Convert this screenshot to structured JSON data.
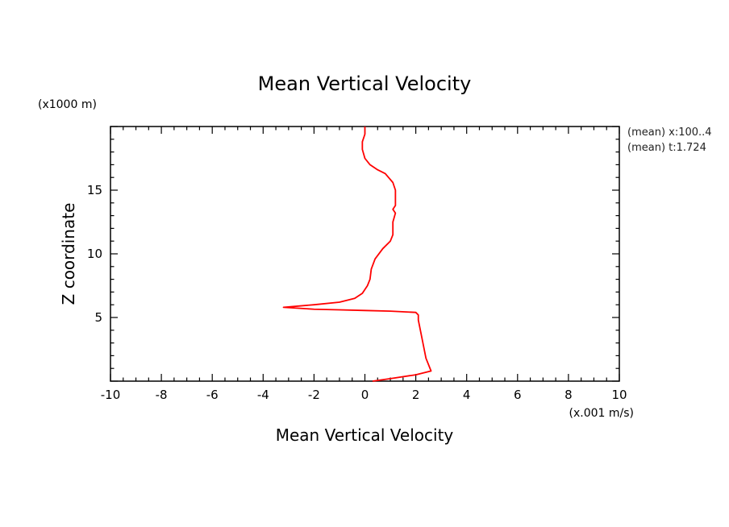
{
  "chart_data": {
    "type": "line",
    "title": "Mean Vertical Velocity",
    "xlabel": "Mean Vertical Velocity",
    "ylabel": "Z coordinate",
    "x_unit": "(x.001 m/s)",
    "y_unit": "(x1000 m)",
    "xlim": [
      -10,
      10
    ],
    "ylim": [
      0,
      20
    ],
    "x_ticks": [
      "-10",
      "-8",
      "-6",
      "-4",
      "-2",
      "0",
      "2",
      "4",
      "6",
      "8",
      "10"
    ],
    "y_ticks": [
      "5",
      "10",
      "15"
    ],
    "grid": false,
    "annotations": [
      "(mean) x:100..4",
      "(mean) t:1.724"
    ],
    "series": [
      {
        "color": "#ff0000",
        "points": [
          [
            0.3,
            0.0
          ],
          [
            1.0,
            0.2
          ],
          [
            2.0,
            0.5
          ],
          [
            2.6,
            0.8
          ],
          [
            2.4,
            1.8
          ],
          [
            2.3,
            2.8
          ],
          [
            2.2,
            3.8
          ],
          [
            2.1,
            4.8
          ],
          [
            2.1,
            5.2
          ],
          [
            2.0,
            5.4
          ],
          [
            1.0,
            5.5
          ],
          [
            0.0,
            5.55
          ],
          [
            -1.0,
            5.6
          ],
          [
            -2.0,
            5.65
          ],
          [
            -3.2,
            5.8
          ],
          [
            -2.0,
            6.0
          ],
          [
            -1.0,
            6.2
          ],
          [
            -0.4,
            6.5
          ],
          [
            -0.1,
            6.9
          ],
          [
            0.0,
            7.2
          ],
          [
            0.1,
            7.5
          ],
          [
            0.2,
            8.0
          ],
          [
            0.25,
            8.8
          ],
          [
            0.4,
            9.6
          ],
          [
            0.7,
            10.4
          ],
          [
            1.0,
            11.0
          ],
          [
            1.1,
            11.5
          ],
          [
            1.1,
            12.5
          ],
          [
            1.2,
            13.2
          ],
          [
            1.1,
            13.5
          ],
          [
            1.2,
            13.8
          ],
          [
            1.2,
            14.5
          ],
          [
            1.2,
            15.0
          ],
          [
            1.1,
            15.6
          ],
          [
            0.8,
            16.3
          ],
          [
            0.5,
            16.6
          ],
          [
            0.2,
            17.0
          ],
          [
            0.0,
            17.5
          ],
          [
            -0.1,
            18.2
          ],
          [
            -0.1,
            18.8
          ],
          [
            0.0,
            19.4
          ],
          [
            0.0,
            20.0
          ]
        ]
      }
    ]
  }
}
